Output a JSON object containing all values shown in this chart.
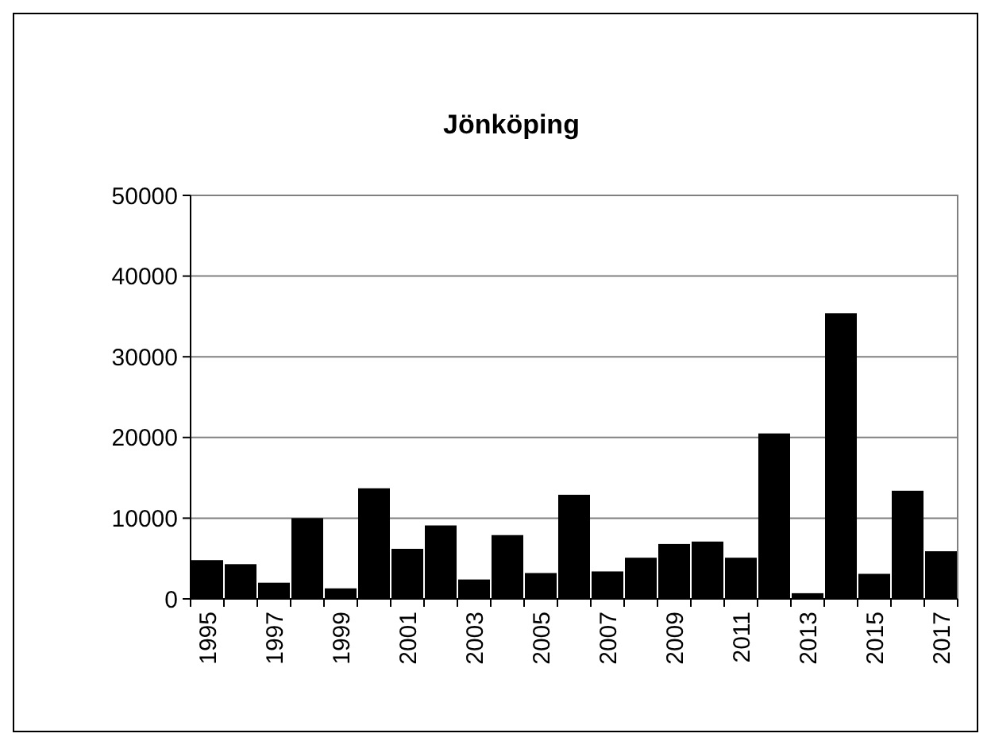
{
  "chart_data": {
    "type": "bar",
    "title": "Jönköping",
    "categories": [
      "1995",
      null,
      "1997",
      null,
      "1999",
      null,
      "2001",
      null,
      "2003",
      null,
      "2005",
      null,
      "2007",
      null,
      "2009",
      null,
      "2011",
      null,
      "2013",
      null,
      "2015",
      null,
      "2017"
    ],
    "values": [
      4800,
      4300,
      2000,
      10000,
      1300,
      13700,
      6200,
      9100,
      2400,
      7900,
      3200,
      12900,
      3400,
      5100,
      6800,
      7100,
      5100,
      20500,
      700,
      35400,
      3100,
      13400,
      5900
    ],
    "color": "#000000",
    "ylim": [
      0,
      50000
    ],
    "yticks": [
      0,
      10000,
      20000,
      30000,
      40000,
      50000
    ],
    "grid": "y"
  }
}
